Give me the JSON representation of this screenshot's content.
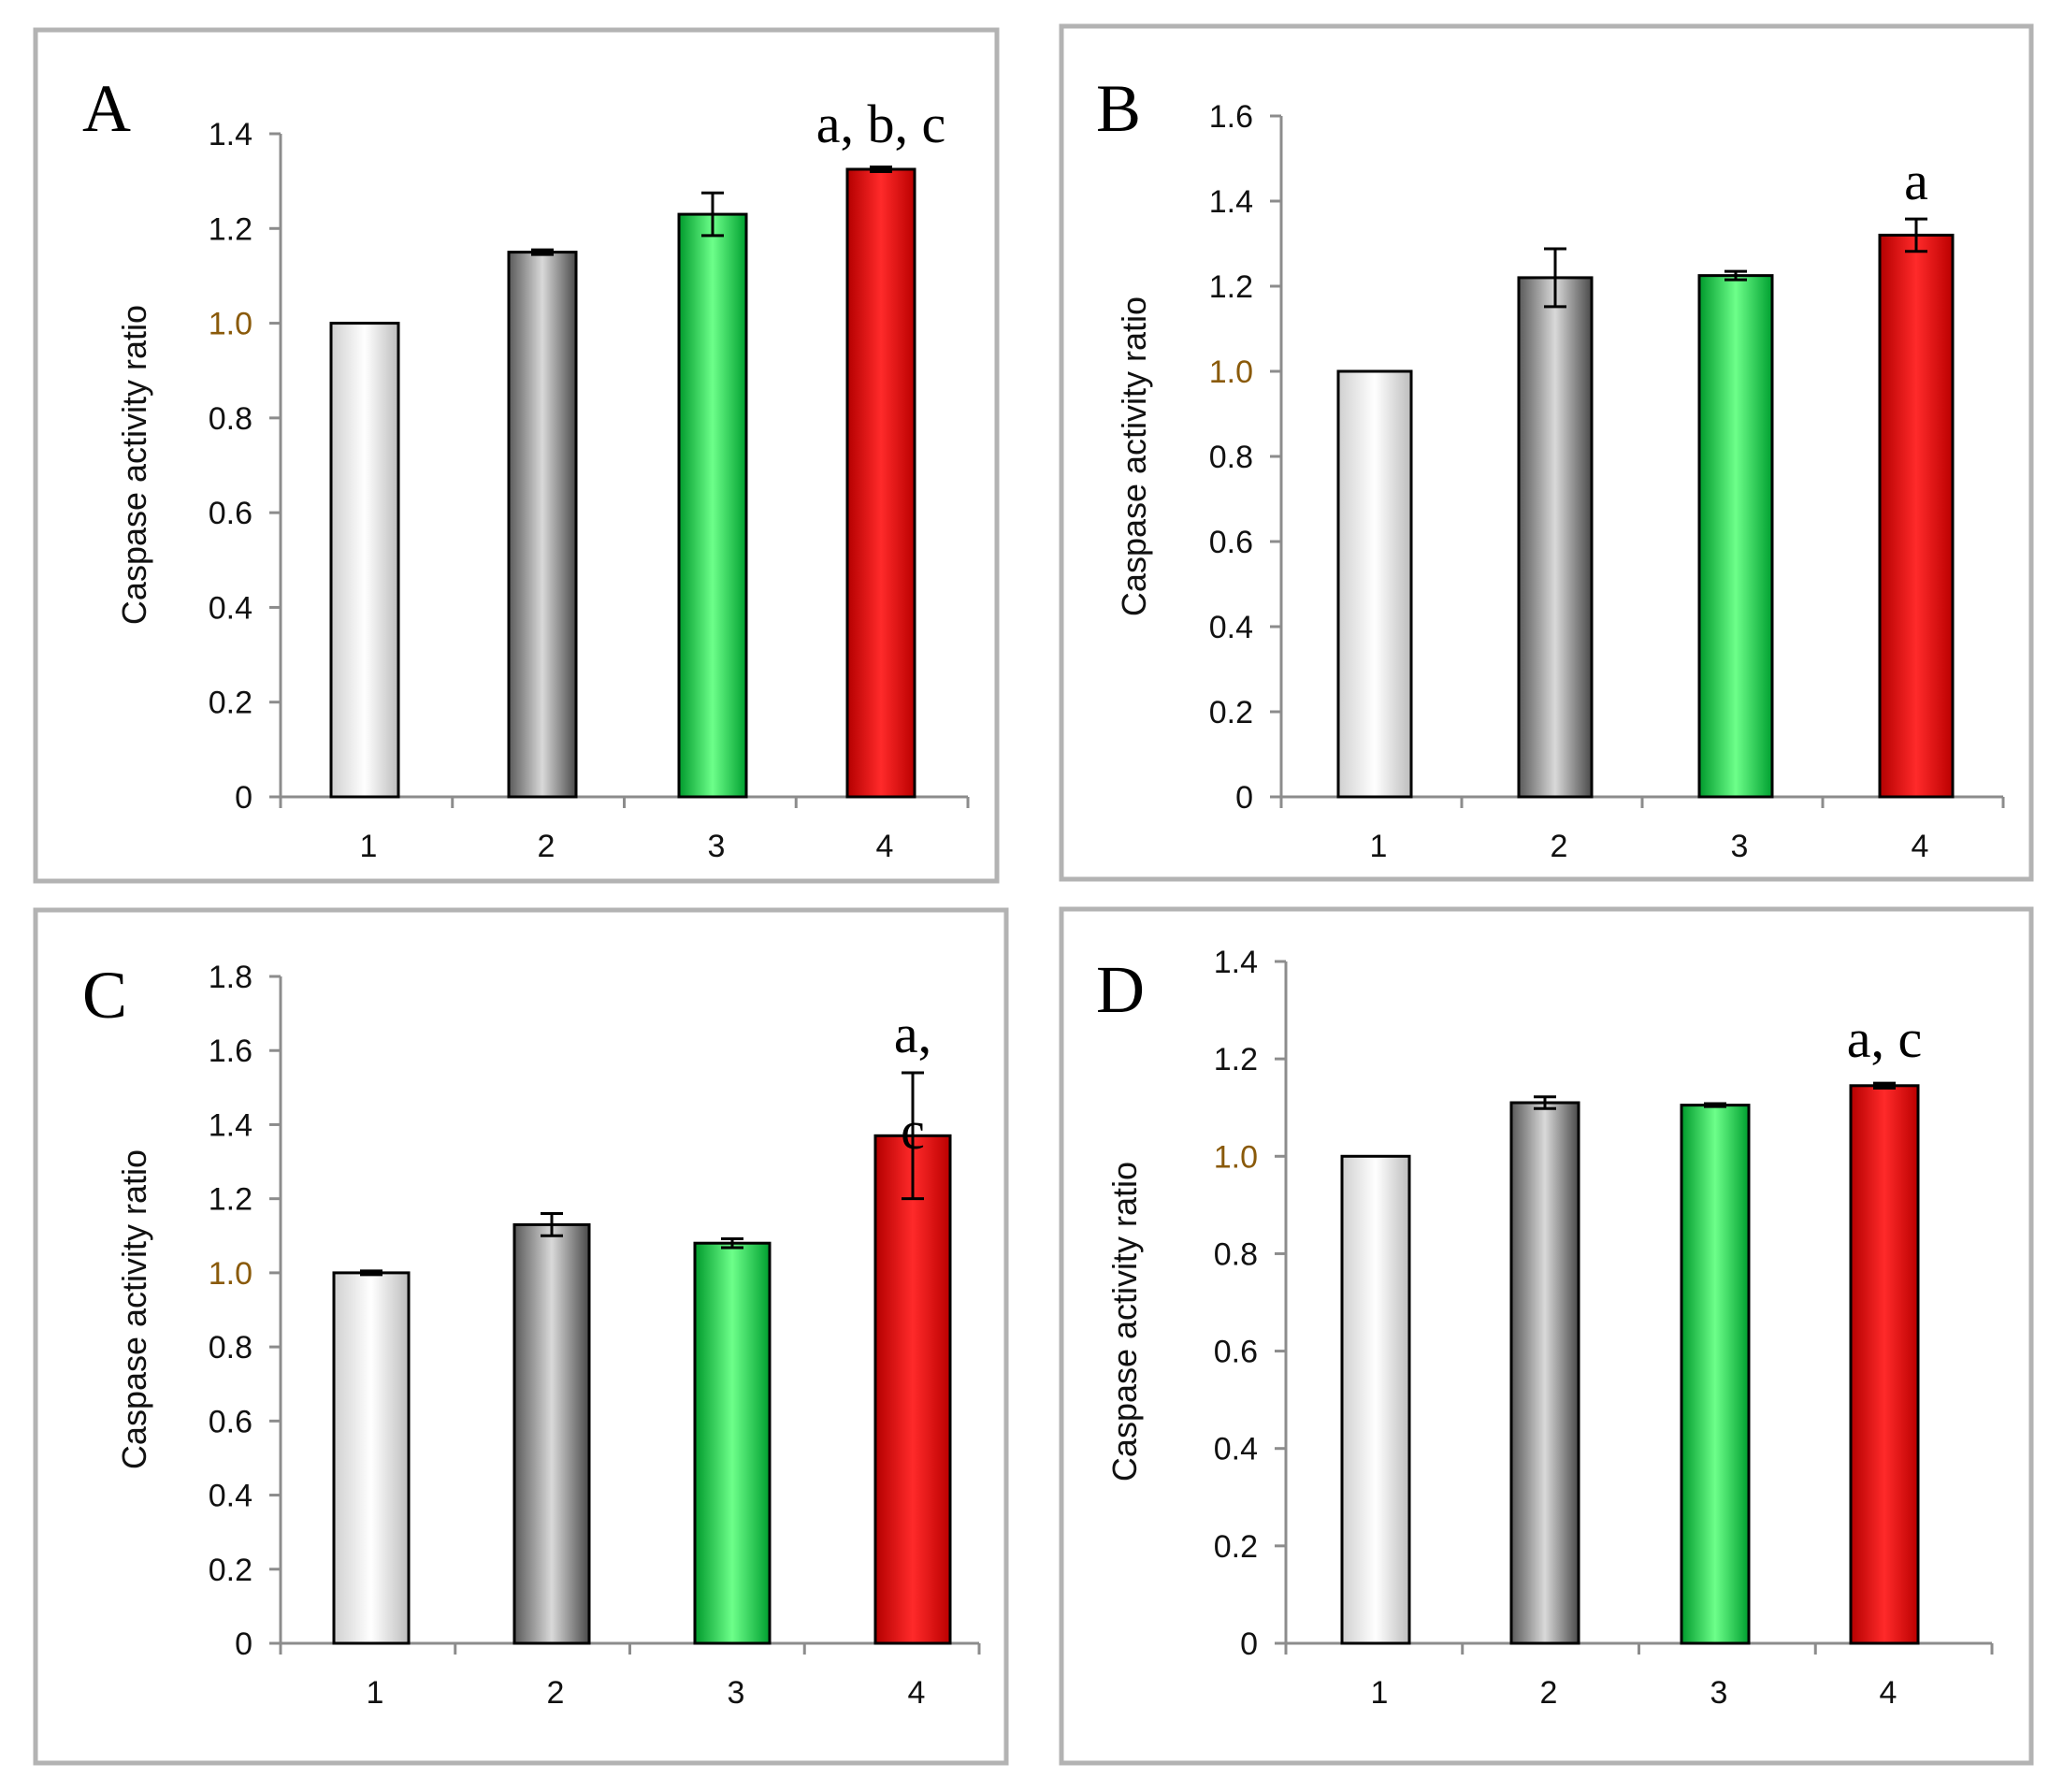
{
  "colors": {
    "panel_border": "#b3b3b3",
    "axis": "#8c8c8c",
    "bar_outline": "#000000",
    "error_bar": "#000000",
    "bar_white": [
      "#d0d0d0",
      "#ffffff",
      "#bdbdbd"
    ],
    "bar_gray": [
      "#5a5a5a",
      "#d9d9d9",
      "#4a4a4a"
    ],
    "bar_green": [
      "#009a2c",
      "#6dff8a",
      "#00a030"
    ],
    "bar_red": [
      "#b40000",
      "#ff2a2a",
      "#bb0000"
    ]
  },
  "chart_data": [
    {
      "type": "bar",
      "panel": "A",
      "ylabel": "Caspase activity ratio",
      "ylim": [
        0,
        1.4
      ],
      "yticks": [
        "0",
        "0.2",
        "0.4",
        "0.6",
        "0.8",
        "1.0",
        "1.2",
        "1.4"
      ],
      "categories": [
        "1",
        "2",
        "3",
        "4"
      ],
      "values": [
        1.0,
        1.15,
        1.23,
        1.325
      ],
      "errors": [
        0.0,
        0.005,
        0.045,
        0.005
      ],
      "annotations": [
        {
          "category": "4",
          "text": "a, b, c"
        }
      ]
    },
    {
      "type": "bar",
      "panel": "B",
      "ylabel": "Caspase activity ratio",
      "ylim": [
        0,
        1.6
      ],
      "yticks": [
        "0",
        "0.2",
        "0.4",
        "0.6",
        "0.8",
        "1.0",
        "1.2",
        "1.4",
        "1.6"
      ],
      "categories": [
        "1",
        "2",
        "3",
        "4"
      ],
      "values": [
        1.0,
        1.22,
        1.225,
        1.32
      ],
      "errors": [
        0.0,
        0.068,
        0.01,
        0.038
      ],
      "annotations": [
        {
          "category": "4",
          "text": "a"
        }
      ]
    },
    {
      "type": "bar",
      "panel": "C",
      "ylabel": "Caspase activity ratio",
      "ylim": [
        0,
        1.8
      ],
      "yticks": [
        "0",
        "0.2",
        "0.4",
        "0.6",
        "0.8",
        "1.0",
        "1.2",
        "1.4",
        "1.6",
        "1.8"
      ],
      "categories": [
        "1",
        "2",
        "3",
        "4"
      ],
      "values": [
        1.0,
        1.13,
        1.08,
        1.37
      ],
      "errors": [
        0.005,
        0.03,
        0.012,
        0.17
      ],
      "annotations": [
        {
          "category": "4",
          "text": "a,"
        },
        {
          "category": "4",
          "text": "c"
        }
      ]
    },
    {
      "type": "bar",
      "panel": "D",
      "ylabel": "Caspase activity ratio",
      "ylim": [
        0,
        1.4
      ],
      "yticks": [
        "0",
        "0.2",
        "0.4",
        "0.6",
        "0.8",
        "1.0",
        "1.2",
        "1.4"
      ],
      "categories": [
        "1",
        "2",
        "3",
        "4"
      ],
      "values": [
        1.0,
        1.11,
        1.105,
        1.145
      ],
      "errors": [
        0.0,
        0.012,
        0.003,
        0.005
      ],
      "annotations": [
        {
          "category": "4",
          "text": "a, c"
        }
      ]
    }
  ]
}
